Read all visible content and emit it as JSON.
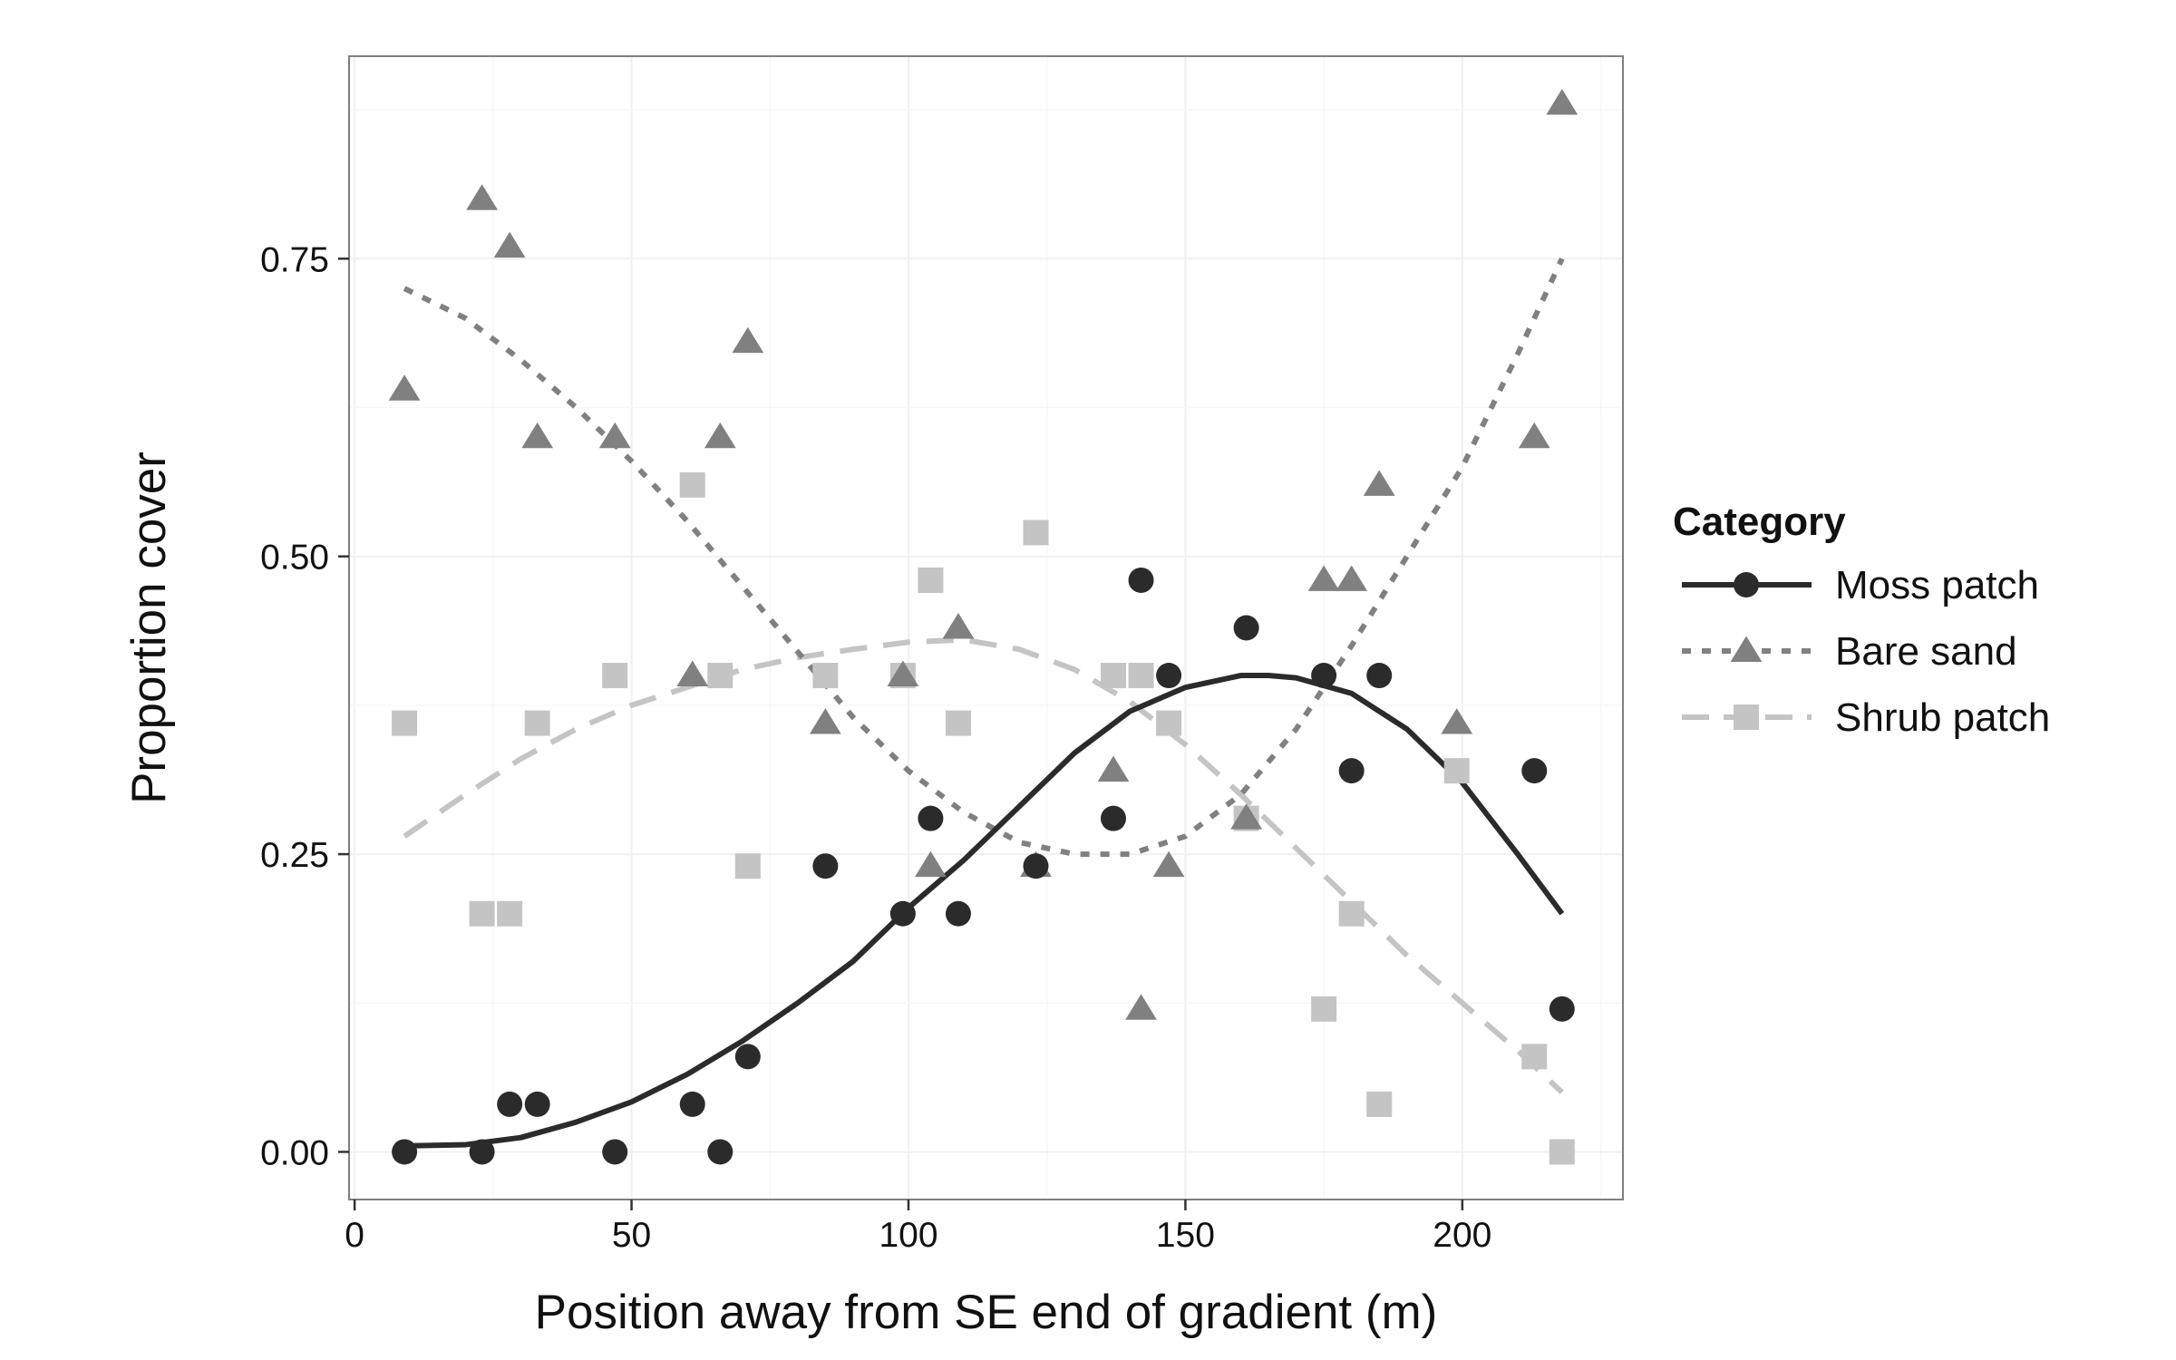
{
  "chart_data": {
    "type": "scatter",
    "title": "",
    "xlabel": "Position away from SE end of gradient (m)",
    "ylabel": "Proportion cover",
    "xlim": [
      -1,
      229
    ],
    "ylim": [
      -0.04,
      0.92
    ],
    "x_ticks": [
      0,
      50,
      100,
      150,
      200
    ],
    "x_tick_labels": [
      "0",
      "50",
      "100",
      "150",
      "200"
    ],
    "y_ticks": [
      0,
      0.25,
      0.5,
      0.75
    ],
    "y_tick_labels": [
      "0.00",
      "0.25",
      "0.50",
      "0.75"
    ],
    "grid": true,
    "legend": {
      "title": "Category",
      "placement": "right"
    },
    "series": [
      {
        "name": "Moss patch",
        "marker": "circle",
        "line": "solid",
        "color": "#2b2b2b",
        "x": [
          9,
          23,
          28,
          33,
          47,
          61,
          66,
          71,
          85,
          99,
          104,
          109,
          123,
          137,
          142,
          147,
          161,
          175,
          180,
          185,
          213,
          218
        ],
        "y": [
          0.0,
          0.0,
          0.04,
          0.04,
          0.0,
          0.04,
          0.0,
          0.08,
          0.24,
          0.2,
          0.28,
          0.2,
          0.24,
          0.28,
          0.48,
          0.4,
          0.44,
          0.4,
          0.32,
          0.4,
          0.32,
          0.12
        ],
        "fit_x": [
          9,
          20,
          30,
          40,
          50,
          60,
          70,
          80,
          90,
          100,
          110,
          120,
          130,
          140,
          150,
          160,
          165,
          170,
          180,
          190,
          200,
          210,
          218
        ],
        "fit_y": [
          0.005,
          0.006,
          0.012,
          0.025,
          0.042,
          0.065,
          0.093,
          0.125,
          0.16,
          0.205,
          0.245,
          0.29,
          0.335,
          0.37,
          0.39,
          0.4,
          0.4,
          0.398,
          0.385,
          0.355,
          0.31,
          0.25,
          0.2
        ]
      },
      {
        "name": "Bare sand",
        "marker": "triangle",
        "line": "dotted",
        "color": "#808080",
        "x": [
          9,
          23,
          28,
          33,
          47,
          61,
          66,
          71,
          85,
          99,
          104,
          109,
          123,
          137,
          142,
          147,
          161,
          175,
          180,
          185,
          199,
          213,
          218
        ],
        "y": [
          0.64,
          0.8,
          0.76,
          0.6,
          0.6,
          0.4,
          0.6,
          0.68,
          0.36,
          0.4,
          0.24,
          0.44,
          0.24,
          0.32,
          0.12,
          0.24,
          0.28,
          0.48,
          0.48,
          0.56,
          0.36,
          0.6,
          0.88
        ],
        "fit_x": [
          9,
          20,
          30,
          40,
          50,
          60,
          70,
          80,
          90,
          100,
          110,
          120,
          130,
          140,
          150,
          160,
          170,
          180,
          190,
          200,
          210,
          218
        ],
        "fit_y": [
          0.725,
          0.7,
          0.665,
          0.625,
          0.58,
          0.53,
          0.475,
          0.42,
          0.365,
          0.32,
          0.285,
          0.26,
          0.25,
          0.25,
          0.265,
          0.3,
          0.355,
          0.425,
          0.5,
          0.575,
          0.67,
          0.75
        ]
      },
      {
        "name": "Shrub patch",
        "marker": "square",
        "line": "dashed",
        "color": "#c4c4c4",
        "x": [
          9,
          23,
          28,
          33,
          47,
          61,
          66,
          71,
          85,
          99,
          104,
          109,
          123,
          137,
          142,
          147,
          161,
          175,
          180,
          185,
          199,
          213,
          218
        ],
        "y": [
          0.36,
          0.2,
          0.2,
          0.36,
          0.4,
          0.56,
          0.4,
          0.24,
          0.4,
          0.4,
          0.48,
          0.36,
          0.52,
          0.4,
          0.4,
          0.36,
          0.28,
          0.12,
          0.2,
          0.04,
          0.32,
          0.08,
          0.0
        ],
        "fit_x": [
          9,
          20,
          30,
          40,
          50,
          60,
          70,
          80,
          90,
          100,
          110,
          120,
          130,
          140,
          150,
          160,
          170,
          180,
          190,
          200,
          210,
          218
        ],
        "fit_y": [
          0.265,
          0.3,
          0.33,
          0.355,
          0.375,
          0.39,
          0.405,
          0.415,
          0.422,
          0.428,
          0.43,
          0.422,
          0.405,
          0.378,
          0.342,
          0.3,
          0.255,
          0.21,
          0.165,
          0.125,
          0.085,
          0.05
        ]
      }
    ]
  }
}
